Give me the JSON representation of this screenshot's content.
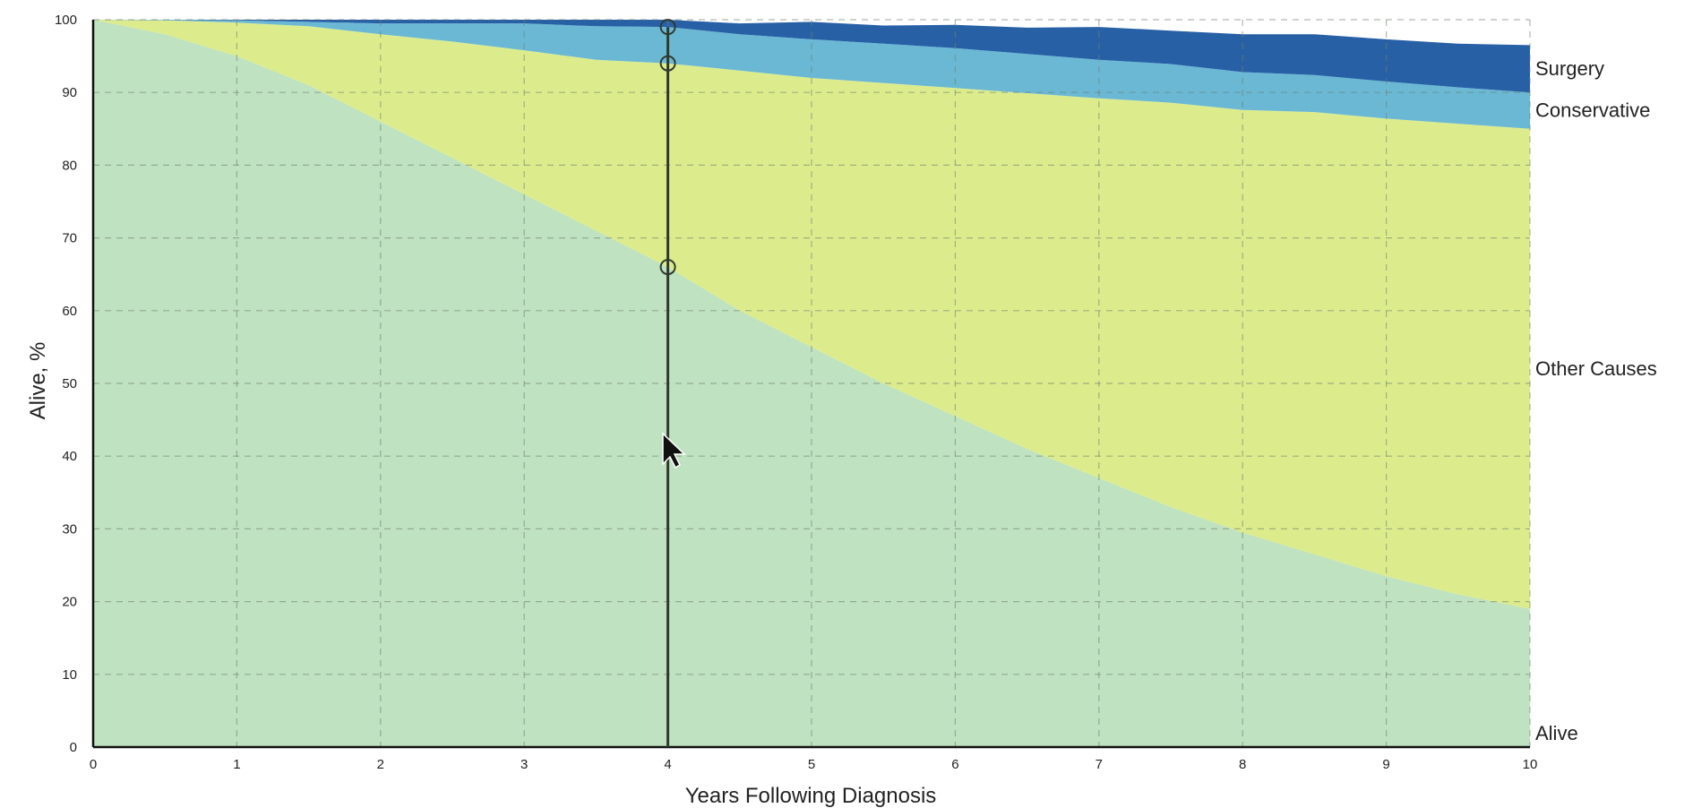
{
  "chart_data": {
    "type": "area",
    "stacked": true,
    "xlabel": "Years Following Diagnosis",
    "ylabel": "Alive, %",
    "xlim": [
      0,
      10
    ],
    "ylim": [
      0,
      100
    ],
    "x_ticks": [
      0,
      1,
      2,
      3,
      4,
      5,
      6,
      7,
      8,
      9,
      10
    ],
    "y_ticks": [
      0,
      10,
      20,
      30,
      40,
      50,
      60,
      70,
      80,
      90,
      100
    ],
    "grid": true,
    "legend": "inline-right",
    "x": [
      0,
      0.5,
      1,
      1.5,
      2,
      2.5,
      3,
      3.5,
      4,
      4.5,
      5,
      5.5,
      6,
      6.5,
      7,
      7.5,
      8,
      8.5,
      9,
      9.5,
      10
    ],
    "series": [
      {
        "name": "Alive",
        "color": "#bfe2c0",
        "values": [
          100,
          98,
          95,
          91,
          86,
          81,
          76,
          71,
          66,
          60,
          55,
          50,
          45.5,
          41,
          37,
          33,
          29.5,
          26.5,
          23.5,
          21,
          19
        ]
      },
      {
        "name": "Other Causes",
        "color": "#dcec8c",
        "values": [
          0,
          1.9,
          4.6,
          8.1,
          12,
          16,
          19.8,
          23.5,
          28,
          33,
          37,
          41.3,
          45.1,
          48.9,
          52.2,
          55.6,
          58.1,
          60.8,
          62.9,
          64.7,
          66
        ]
      },
      {
        "name": "Conservative",
        "color": "#6ab8d4",
        "values": [
          0,
          0.1,
          0.3,
          0.6,
          1.5,
          2.5,
          3.7,
          4.6,
          5,
          5,
          5.3,
          5.4,
          5.5,
          5.4,
          5.3,
          5.3,
          5.2,
          5.1,
          5.1,
          5,
          5
        ]
      },
      {
        "name": "Surgery",
        "color": "#2860a6",
        "values": [
          0,
          0,
          0.1,
          0.3,
          0.5,
          0.5,
          0.5,
          0.9,
          1,
          1.5,
          2.4,
          2.5,
          3.2,
          3.6,
          4.5,
          4.6,
          5.2,
          5.6,
          5.8,
          6,
          6.5
        ]
      }
    ],
    "cursor": {
      "x": 4,
      "marker_values": [
        66,
        94,
        99
      ]
    }
  }
}
